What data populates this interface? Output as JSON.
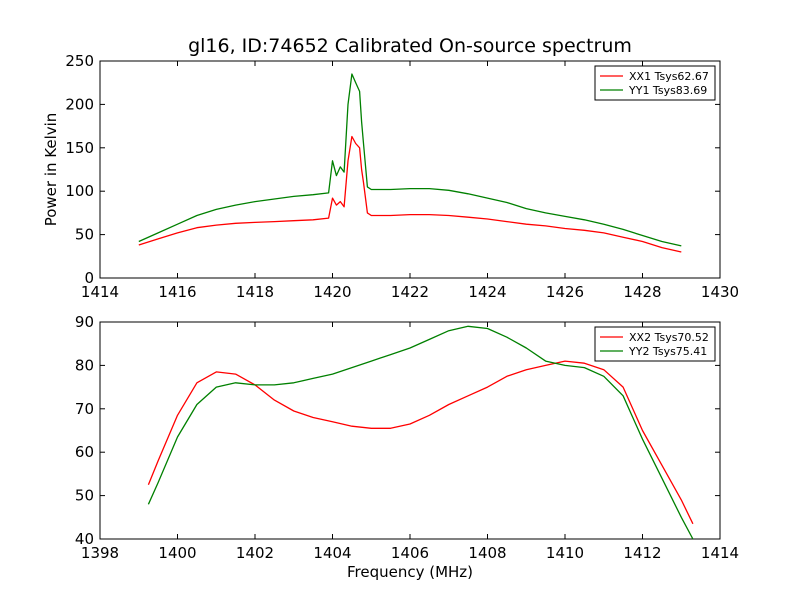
{
  "figure": {
    "title": "gl16, ID:74652 Calibrated On-source spectrum"
  },
  "chart_data": [
    {
      "type": "line",
      "title": "gl16, ID:74652 Calibrated On-source spectrum",
      "xlabel": "",
      "ylabel": "Power in Kelvin",
      "xlim": [
        1414,
        1430
      ],
      "ylim": [
        0,
        250
      ],
      "xticks": [
        "1414",
        "1416",
        "1418",
        "1420",
        "1422",
        "1424",
        "1426",
        "1428",
        "1430"
      ],
      "yticks": [
        "0",
        "50",
        "100",
        "150",
        "200",
        "250"
      ],
      "grid": false,
      "legend_position": "top-right",
      "series": [
        {
          "name": "XX1 Tsys62.67",
          "color": "#ff0000",
          "x": [
            1415.0,
            1415.5,
            1416.0,
            1416.5,
            1417.0,
            1417.5,
            1418.0,
            1418.5,
            1419.0,
            1419.5,
            1419.9,
            1420.0,
            1420.1,
            1420.2,
            1420.3,
            1420.4,
            1420.5,
            1420.6,
            1420.7,
            1420.75,
            1420.8,
            1420.9,
            1421.0,
            1421.5,
            1422.0,
            1422.5,
            1423.0,
            1423.5,
            1424.0,
            1424.5,
            1425.0,
            1425.5,
            1426.0,
            1426.5,
            1427.0,
            1427.5,
            1428.0,
            1428.5,
            1429.0
          ],
          "y": [
            38,
            45,
            52,
            58,
            61,
            63,
            64,
            65,
            66,
            67,
            69,
            92,
            84,
            88,
            82,
            135,
            163,
            155,
            150,
            125,
            110,
            75,
            72,
            72,
            73,
            73,
            72,
            70,
            68,
            65,
            62,
            60,
            57,
            55,
            52,
            47,
            42,
            35,
            30
          ]
        },
        {
          "name": "YY1 Tsys83.69",
          "color": "#008000",
          "x": [
            1415.0,
            1415.5,
            1416.0,
            1416.5,
            1417.0,
            1417.5,
            1418.0,
            1418.5,
            1419.0,
            1419.5,
            1419.9,
            1420.0,
            1420.1,
            1420.2,
            1420.3,
            1420.4,
            1420.5,
            1420.6,
            1420.7,
            1420.75,
            1420.8,
            1420.9,
            1421.0,
            1421.5,
            1422.0,
            1422.5,
            1423.0,
            1423.5,
            1424.0,
            1424.5,
            1425.0,
            1425.5,
            1426.0,
            1426.5,
            1427.0,
            1427.5,
            1428.0,
            1428.5,
            1429.0
          ],
          "y": [
            42,
            52,
            62,
            72,
            79,
            84,
            88,
            91,
            94,
            96,
            98,
            135,
            118,
            128,
            122,
            200,
            235,
            225,
            215,
            180,
            155,
            105,
            102,
            102,
            103,
            103,
            101,
            97,
            92,
            87,
            80,
            75,
            71,
            67,
            62,
            56,
            49,
            42,
            37
          ]
        }
      ]
    },
    {
      "type": "line",
      "title": "",
      "xlabel": "Frequency (MHz)",
      "ylabel": "",
      "xlim": [
        1398,
        1414
      ],
      "ylim": [
        40,
        90
      ],
      "xticks": [
        "1398",
        "1400",
        "1402",
        "1404",
        "1406",
        "1408",
        "1410",
        "1412",
        "1414"
      ],
      "yticks": [
        "40",
        "50",
        "60",
        "70",
        "80",
        "90"
      ],
      "grid": false,
      "legend_position": "top-right",
      "series": [
        {
          "name": "XX2 Tsys70.52",
          "color": "#ff0000",
          "x": [
            1399.25,
            1399.5,
            1400.0,
            1400.5,
            1401.0,
            1401.5,
            1402.0,
            1402.5,
            1403.0,
            1403.5,
            1404.0,
            1404.5,
            1405.0,
            1405.5,
            1406.0,
            1406.5,
            1407.0,
            1407.5,
            1408.0,
            1408.5,
            1409.0,
            1409.5,
            1410.0,
            1410.5,
            1411.0,
            1411.5,
            1412.0,
            1412.5,
            1413.0,
            1413.3
          ],
          "y": [
            52.5,
            58,
            68.5,
            76,
            78.5,
            78,
            75.5,
            72,
            69.5,
            68,
            67,
            66,
            65.5,
            65.5,
            66.5,
            68.5,
            71,
            73,
            75,
            77.5,
            79,
            80,
            81,
            80.5,
            79,
            75,
            65,
            57,
            49,
            43.5
          ]
        },
        {
          "name": "YY2 Tsys75.41",
          "color": "#008000",
          "x": [
            1399.25,
            1399.5,
            1400.0,
            1400.5,
            1401.0,
            1401.5,
            1402.0,
            1402.5,
            1403.0,
            1403.5,
            1404.0,
            1404.5,
            1405.0,
            1405.5,
            1406.0,
            1406.5,
            1407.0,
            1407.5,
            1408.0,
            1408.5,
            1409.0,
            1409.5,
            1410.0,
            1410.5,
            1411.0,
            1411.5,
            1412.0,
            1412.5,
            1413.0,
            1413.3
          ],
          "y": [
            48,
            53,
            63.5,
            71,
            75,
            76,
            75.5,
            75.5,
            76,
            77,
            78,
            79.5,
            81,
            82.5,
            84,
            86,
            88,
            89,
            88.5,
            86.5,
            84,
            81,
            80,
            79.5,
            77.5,
            73,
            63,
            54,
            45,
            40
          ]
        }
      ]
    }
  ]
}
